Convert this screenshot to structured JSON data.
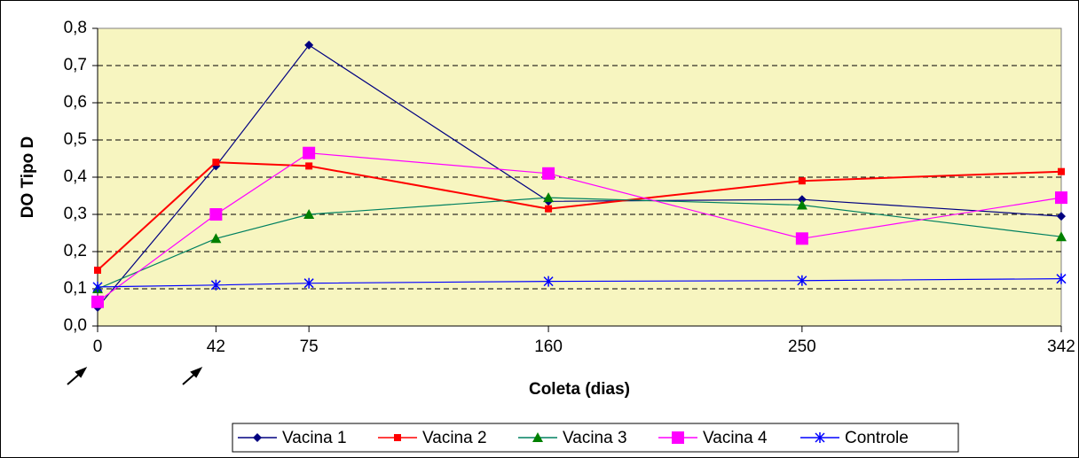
{
  "chart_data": {
    "type": "line",
    "x_label": "Coleta (dias)",
    "y_label": "DO Tipo D",
    "x": [
      0,
      42,
      75,
      160,
      250,
      342
    ],
    "xlim": [
      0,
      342
    ],
    "xticks": [
      0,
      42,
      75,
      160,
      250,
      342
    ],
    "ylim": [
      0,
      0.8
    ],
    "yticks": [
      {
        "value": 0,
        "label": "0,0"
      },
      {
        "value": 0.1,
        "label": "0,1"
      },
      {
        "value": 0.2,
        "label": "0,2"
      },
      {
        "value": 0.3,
        "label": "0,3"
      },
      {
        "value": 0.4,
        "label": "0,4"
      },
      {
        "value": 0.5,
        "label": "0,5"
      },
      {
        "value": 0.6,
        "label": "0,6"
      },
      {
        "value": 0.7,
        "label": "0,7"
      },
      {
        "value": 0.8,
        "label": "0,8"
      }
    ],
    "grid": true,
    "legend": "bottom",
    "background": "#f7f5c0",
    "series": [
      {
        "name": "Vacina 1",
        "color": "#000080",
        "marker": "diamond",
        "values": [
          0.05,
          0.43,
          0.755,
          0.335,
          0.34,
          0.295
        ]
      },
      {
        "name": "Vacina 2",
        "color": "#ff0000",
        "marker": "square",
        "values": [
          0.15,
          0.44,
          0.43,
          0.315,
          0.39,
          0.415
        ]
      },
      {
        "name": "Vacina 3",
        "color": "#008060",
        "marker": "triangle",
        "values": [
          0.1,
          0.235,
          0.3,
          0.345,
          0.325,
          0.24
        ]
      },
      {
        "name": "Vacina 4",
        "color": "#ff00ff",
        "marker": "bigsquare",
        "values": [
          0.065,
          0.3,
          0.465,
          0.41,
          0.235,
          0.345
        ]
      },
      {
        "name": "Controle",
        "color": "#0000ff",
        "marker": "asterisk",
        "values": [
          0.105,
          0.11,
          0.115,
          0.12,
          0.122,
          0.127
        ]
      }
    ]
  }
}
